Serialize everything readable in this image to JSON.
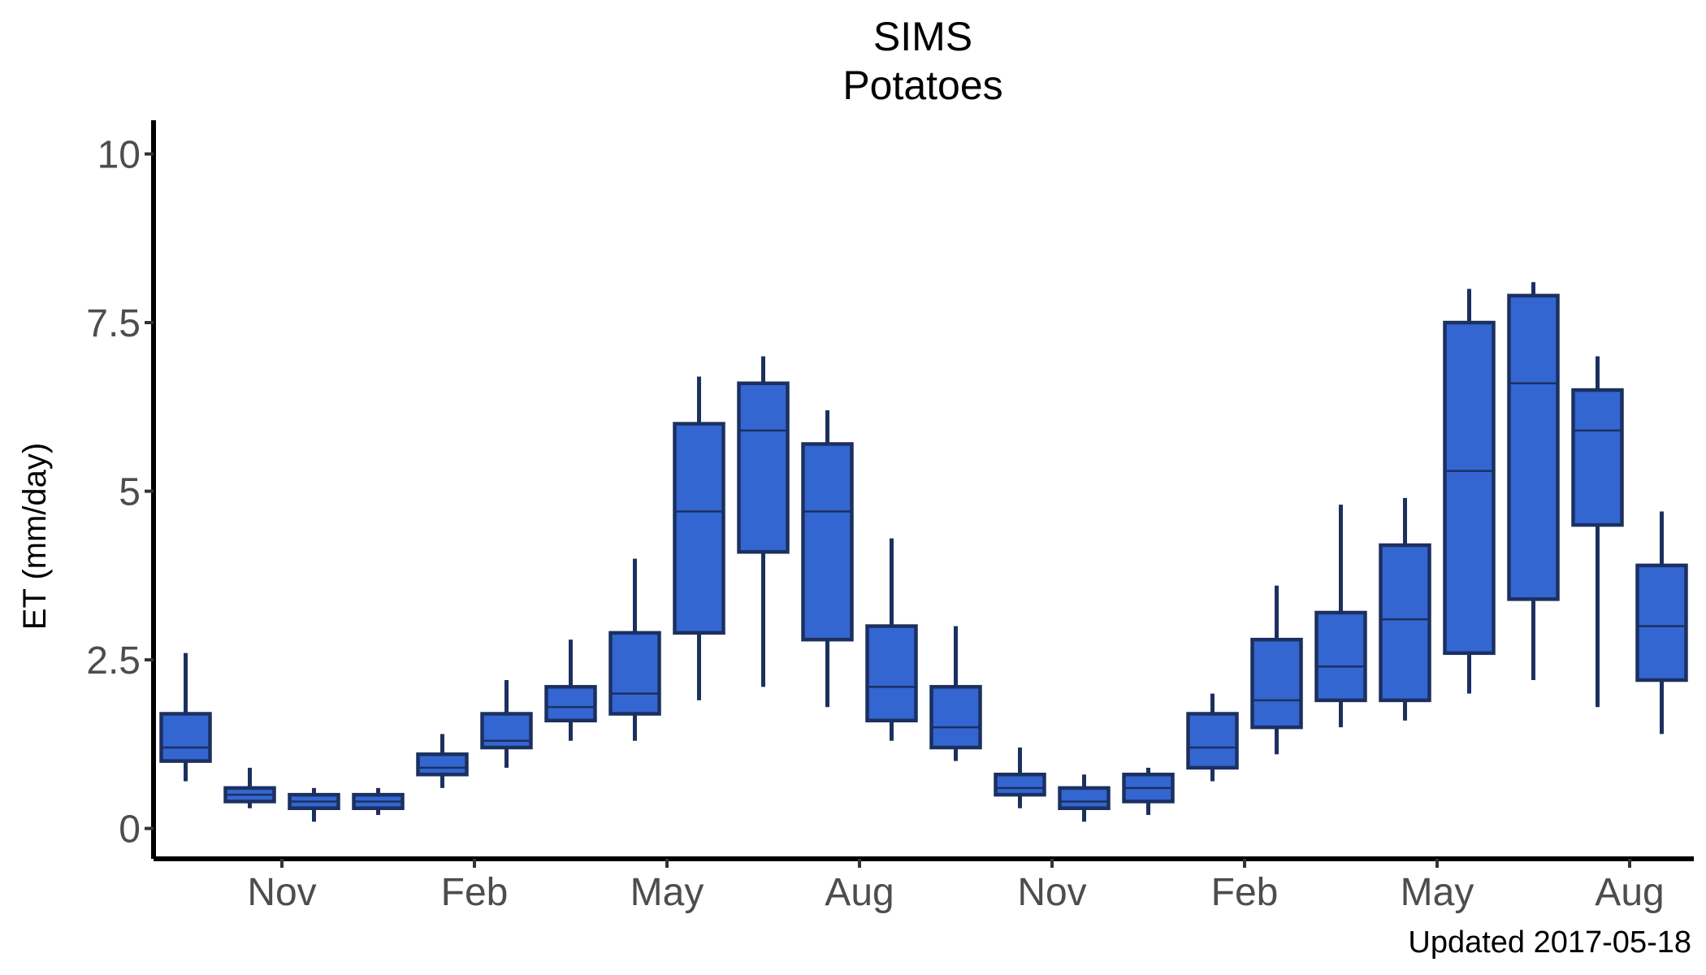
{
  "chart_data": {
    "type": "boxplot",
    "title": "SIMS",
    "subtitle": "Potatoes",
    "xlabel": "",
    "ylabel": "ET (mm/day)",
    "caption": "Updated  2017-05-18",
    "ylim": [
      -0.45,
      10.5
    ],
    "xlim": [
      0.5,
      24.5
    ],
    "y_ticks": [
      {
        "value": 0,
        "label": "0"
      },
      {
        "value": 2.5,
        "label": "2.5"
      },
      {
        "value": 5,
        "label": "5"
      },
      {
        "value": 7.5,
        "label": "7.5"
      },
      {
        "value": 10,
        "label": "10"
      }
    ],
    "x_ticks": [
      {
        "position": 2.5,
        "label": "Nov"
      },
      {
        "position": 5.5,
        "label": "Feb"
      },
      {
        "position": 8.5,
        "label": "May"
      },
      {
        "position": 11.5,
        "label": "Aug"
      },
      {
        "position": 14.5,
        "label": "Nov"
      },
      {
        "position": 17.5,
        "label": "Feb"
      },
      {
        "position": 20.5,
        "label": "May"
      },
      {
        "position": 23.5,
        "label": "Aug"
      }
    ],
    "grid": false,
    "legend": "none",
    "colors": {
      "fill": "#3366d1",
      "stroke": "#1c3060",
      "axis": "#000000"
    },
    "boxes": [
      {
        "low": 0.7,
        "q1": 1.0,
        "median": 1.2,
        "q3": 1.7,
        "high": 2.6
      },
      {
        "low": 0.3,
        "q1": 0.4,
        "median": 0.5,
        "q3": 0.6,
        "high": 0.9
      },
      {
        "low": 0.1,
        "q1": 0.3,
        "median": 0.4,
        "q3": 0.5,
        "high": 0.6
      },
      {
        "low": 0.2,
        "q1": 0.3,
        "median": 0.4,
        "q3": 0.5,
        "high": 0.6
      },
      {
        "low": 0.6,
        "q1": 0.8,
        "median": 0.9,
        "q3": 1.1,
        "high": 1.4
      },
      {
        "low": 0.9,
        "q1": 1.2,
        "median": 1.3,
        "q3": 1.7,
        "high": 2.2
      },
      {
        "low": 1.3,
        "q1": 1.6,
        "median": 1.8,
        "q3": 2.1,
        "high": 2.8
      },
      {
        "low": 1.3,
        "q1": 1.7,
        "median": 2.0,
        "q3": 2.9,
        "high": 4.0
      },
      {
        "low": 1.9,
        "q1": 2.9,
        "median": 4.7,
        "q3": 6.0,
        "high": 6.7
      },
      {
        "low": 2.1,
        "q1": 4.1,
        "median": 5.9,
        "q3": 6.6,
        "high": 7.0
      },
      {
        "low": 1.8,
        "q1": 2.8,
        "median": 4.7,
        "q3": 5.7,
        "high": 6.2
      },
      {
        "low": 1.3,
        "q1": 1.6,
        "median": 2.1,
        "q3": 3.0,
        "high": 4.3
      },
      {
        "low": 1.0,
        "q1": 1.2,
        "median": 1.5,
        "q3": 2.1,
        "high": 3.0
      },
      {
        "low": 0.3,
        "q1": 0.5,
        "median": 0.6,
        "q3": 0.8,
        "high": 1.2
      },
      {
        "low": 0.1,
        "q1": 0.3,
        "median": 0.4,
        "q3": 0.6,
        "high": 0.8
      },
      {
        "low": 0.2,
        "q1": 0.4,
        "median": 0.6,
        "q3": 0.8,
        "high": 0.9
      },
      {
        "low": 0.7,
        "q1": 0.9,
        "median": 1.2,
        "q3": 1.7,
        "high": 2.0
      },
      {
        "low": 1.1,
        "q1": 1.5,
        "median": 1.9,
        "q3": 2.8,
        "high": 3.6
      },
      {
        "low": 1.5,
        "q1": 1.9,
        "median": 2.4,
        "q3": 3.2,
        "high": 4.8
      },
      {
        "low": 1.6,
        "q1": 1.9,
        "median": 3.1,
        "q3": 4.2,
        "high": 4.9
      },
      {
        "low": 2.0,
        "q1": 2.6,
        "median": 5.3,
        "q3": 7.5,
        "high": 8.0
      },
      {
        "low": 2.2,
        "q1": 3.4,
        "median": 6.6,
        "q3": 7.9,
        "high": 8.1
      },
      {
        "low": 1.8,
        "q1": 4.5,
        "median": 5.9,
        "q3": 6.5,
        "high": 7.0
      },
      {
        "low": 1.4,
        "q1": 2.2,
        "median": 3.0,
        "q3": 3.9,
        "high": 4.7
      }
    ]
  }
}
